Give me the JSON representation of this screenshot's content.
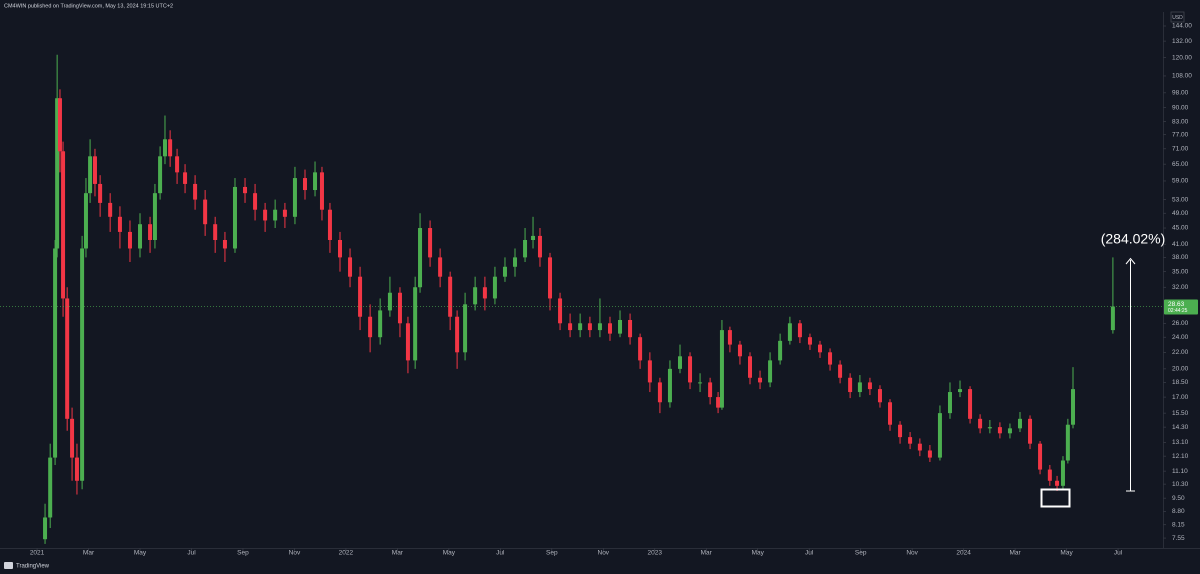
{
  "chart_data": {
    "type": "candlestick",
    "header": "CM4WIN published on TradingView.com, May 13, 2024 19:15 UTC+2",
    "currency": "USD",
    "footer": "TradingView",
    "annotation": "(284.02%)",
    "log_scale": true,
    "up_color": "#4caf50",
    "down_color": "#f23645",
    "last_price": 28.63,
    "countdown": "02:44:25",
    "xlim": [
      -1.44,
      43.63
    ],
    "ylim": [
      7.13,
      154.3
    ],
    "xticks": [
      {
        "value": 0,
        "label": "2021"
      },
      {
        "value": 2,
        "label": "Mar"
      },
      {
        "value": 4,
        "label": "May"
      },
      {
        "value": 6,
        "label": "Jul"
      },
      {
        "value": 8,
        "label": "Sep"
      },
      {
        "value": 10,
        "label": "Nov"
      },
      {
        "value": 12,
        "label": "2022"
      },
      {
        "value": 14,
        "label": "Mar"
      },
      {
        "value": 16,
        "label": "May"
      },
      {
        "value": 18,
        "label": "Jul"
      },
      {
        "value": 20,
        "label": "Sep"
      },
      {
        "value": 22,
        "label": "Nov"
      },
      {
        "value": 24,
        "label": "2023"
      },
      {
        "value": 26,
        "label": "Mar"
      },
      {
        "value": 28,
        "label": "May"
      },
      {
        "value": 30,
        "label": "Jul"
      },
      {
        "value": 32,
        "label": "Sep"
      },
      {
        "value": 34,
        "label": "Nov"
      },
      {
        "value": 36,
        "label": "2024"
      },
      {
        "value": 38,
        "label": "Mar"
      },
      {
        "value": 40,
        "label": "May"
      },
      {
        "value": 42,
        "label": "Jul"
      }
    ],
    "yticks": [
      {
        "value": 144,
        "label": "144.00"
      },
      {
        "value": 132,
        "label": "132.00"
      },
      {
        "value": 120,
        "label": "120.00"
      },
      {
        "value": 108,
        "label": "108.00"
      },
      {
        "value": 98,
        "label": "98.00"
      },
      {
        "value": 90,
        "label": "90.00"
      },
      {
        "value": 83,
        "label": "83.00"
      },
      {
        "value": 77,
        "label": "77.00"
      },
      {
        "value": 71,
        "label": "71.00"
      },
      {
        "value": 65,
        "label": "65.00"
      },
      {
        "value": 59,
        "label": "59.00"
      },
      {
        "value": 53,
        "label": "53.00"
      },
      {
        "value": 49,
        "label": "49.00"
      },
      {
        "value": 45,
        "label": "45.00"
      },
      {
        "value": 41,
        "label": "41.00"
      },
      {
        "value": 38,
        "label": "38.00"
      },
      {
        "value": 35,
        "label": "35.00"
      },
      {
        "value": 32,
        "label": "32.00"
      },
      {
        "value": 26,
        "label": "26.00"
      },
      {
        "value": 24,
        "label": "24.00"
      },
      {
        "value": 22,
        "label": "22.00"
      },
      {
        "value": 20,
        "label": "20.00"
      },
      {
        "value": 18.5,
        "label": "18.50"
      },
      {
        "value": 17,
        "label": "17.00"
      },
      {
        "value": 15.5,
        "label": "15.50"
      },
      {
        "value": 14.3,
        "label": "14.30"
      },
      {
        "value": 13.1,
        "label": "13.10"
      },
      {
        "value": 12.1,
        "label": "12.10"
      },
      {
        "value": 11.1,
        "label": "11.10"
      },
      {
        "value": 10.3,
        "label": "10.30"
      },
      {
        "value": 9.5,
        "label": "9.50"
      },
      {
        "value": 8.8,
        "label": "8.80"
      },
      {
        "value": 8.15,
        "label": "8.15"
      },
      {
        "value": 7.55,
        "label": "7.55"
      }
    ],
    "x": [
      0.31,
      0.51,
      0.7,
      0.78,
      0.89,
      1.01,
      1.17,
      1.36,
      1.55,
      1.75,
      1.9,
      2.06,
      2.25,
      2.45,
      2.84,
      3.22,
      3.61,
      4.0,
      4.39,
      4.58,
      4.78,
      4.97,
      5.17,
      5.44,
      5.75,
      6.14,
      6.53,
      6.92,
      7.3,
      7.69,
      8.08,
      8.47,
      8.86,
      9.25,
      9.63,
      10.02,
      10.41,
      10.8,
      11.07,
      11.38,
      11.77,
      12.16,
      12.55,
      12.94,
      13.33,
      13.71,
      14.1,
      14.41,
      14.69,
      14.88,
      15.27,
      15.66,
      16.05,
      16.32,
      16.63,
      17.02,
      17.4,
      17.79,
      18.18,
      18.57,
      18.96,
      19.27,
      19.54,
      19.93,
      20.32,
      20.71,
      21.1,
      21.48,
      21.87,
      22.26,
      22.65,
      23.04,
      23.43,
      23.81,
      24.2,
      24.59,
      24.98,
      25.37,
      25.76,
      26.15,
      26.46,
      26.61,
      26.92,
      27.31,
      27.7,
      28.09,
      28.48,
      28.87,
      29.25,
      29.64,
      30.03,
      30.42,
      30.81,
      31.2,
      31.59,
      31.97,
      32.36,
      32.75,
      33.14,
      33.53,
      33.92,
      34.3,
      34.69,
      35.08,
      35.47,
      35.86,
      36.25,
      36.64,
      37.02,
      37.41,
      37.8,
      38.19,
      38.58,
      38.97,
      39.35,
      39.63,
      39.86,
      40.05,
      40.25,
      41.8
    ],
    "open": [
      7.5,
      8.5,
      12,
      40,
      95,
      70,
      30,
      15,
      12,
      10.5,
      40,
      55,
      68,
      58,
      52,
      48,
      44,
      40,
      46,
      42,
      55,
      68,
      75,
      68,
      62,
      58,
      53,
      46,
      42,
      40,
      57,
      55,
      50,
      47,
      50,
      48,
      60,
      56,
      62,
      50,
      42,
      38,
      34,
      27,
      24,
      28,
      31,
      26,
      21,
      32,
      45,
      38,
      34,
      27,
      22,
      29,
      32,
      30,
      34,
      36,
      38,
      42,
      43,
      38,
      30,
      26,
      25,
      26,
      25,
      26,
      24.5,
      26.5,
      24,
      21,
      18.5,
      16.5,
      20,
      21.5,
      18.5,
      18.5,
      17,
      16,
      25,
      23,
      21.5,
      19,
      18.5,
      21,
      23.5,
      26,
      24,
      23,
      22,
      20.5,
      19,
      17.5,
      18.5,
      17.8,
      16.5,
      14.5,
      13.5,
      13,
      12.5,
      12,
      15.5,
      17.5,
      17.8,
      15,
      14.2,
      14.3,
      13.8,
      14.2,
      15,
      13,
      11.2,
      10.5,
      10.2,
      11.8,
      14.5,
      25
    ],
    "high": [
      9.2,
      13,
      42,
      122,
      100,
      74,
      32,
      16,
      13,
      43,
      60,
      75,
      71,
      61,
      55,
      51,
      47,
      49,
      48,
      58,
      72,
      86,
      79,
      71,
      65,
      61,
      56,
      48,
      44,
      60,
      60,
      58,
      52,
      53,
      52,
      64,
      63,
      66,
      64,
      52,
      44,
      40,
      36,
      29,
      30,
      34,
      32,
      27,
      34,
      49,
      47,
      40,
      35,
      28,
      31,
      34,
      34,
      36,
      38,
      40,
      45,
      48,
      45,
      39,
      31,
      27.5,
      27.5,
      27,
      30,
      27,
      28,
      27.5,
      24.5,
      22,
      19,
      21,
      23,
      22,
      19.5,
      19,
      17.5,
      26.5,
      25.5,
      23.5,
      22,
      19.8,
      22,
      24.5,
      27,
      26.5,
      24.5,
      23.5,
      22.5,
      21,
      19.5,
      19.3,
      19,
      18.2,
      16.8,
      14.8,
      13.9,
      13.4,
      12.9,
      16.2,
      18.5,
      18.7,
      18.1,
      15.4,
      14.9,
      14.7,
      14.6,
      15.6,
      15.3,
      13.2,
      11.5,
      10.8,
      12.1,
      15,
      20.2,
      38
    ],
    "low": [
      7.3,
      8,
      11.5,
      38,
      62,
      27,
      14,
      10.5,
      9.7,
      10,
      38,
      52,
      54,
      48,
      44,
      40,
      37,
      38,
      39,
      40,
      53,
      65,
      64,
      58,
      55,
      50,
      43,
      39,
      37,
      39,
      52,
      47,
      44,
      45,
      45,
      46,
      53,
      54,
      47,
      39,
      35,
      32,
      25,
      22,
      23,
      27,
      24,
      19.5,
      20,
      31,
      36,
      32,
      25,
      20,
      21,
      28,
      28,
      29,
      33,
      34,
      37,
      40,
      36,
      28,
      25,
      24,
      24,
      24,
      24,
      23.5,
      24,
      23,
      20,
      17.5,
      15.5,
      16,
      19.5,
      17.8,
      17.5,
      16.3,
      15.5,
      15.8,
      22,
      20.5,
      18.3,
      17.8,
      18,
      20.5,
      23,
      23.2,
      22.3,
      21.3,
      19.8,
      18.4,
      16.9,
      17,
      17.2,
      16,
      14,
      13,
      12.6,
      12.1,
      11.7,
      11.8,
      15,
      17,
      14.6,
      13.8,
      13.8,
      13.4,
      13.4,
      13.9,
      12.6,
      10.9,
      10.2,
      9.9,
      10,
      11.6,
      14.2,
      24.5
    ],
    "close": [
      8.5,
      12,
      40,
      95,
      70,
      30,
      15,
      12,
      10.5,
      40,
      55,
      68,
      58,
      52,
      48,
      44,
      40,
      46,
      42,
      55,
      68,
      75,
      68,
      62,
      58,
      53,
      46,
      42,
      40,
      57,
      55,
      50,
      47,
      50,
      48,
      60,
      56,
      62,
      50,
      42,
      38,
      34,
      27,
      24,
      28,
      31,
      26,
      21,
      32,
      45,
      38,
      34,
      27,
      22,
      29,
      32,
      30,
      34,
      36,
      38,
      42,
      43,
      38,
      30,
      26,
      25,
      26,
      25,
      26,
      24.5,
      26.5,
      24,
      21,
      18.5,
      16.5,
      20,
      21.5,
      18.5,
      18.5,
      17,
      16,
      25,
      23,
      21.5,
      19,
      18.5,
      21,
      23.5,
      26,
      24,
      23,
      22,
      20.5,
      19,
      17.5,
      18.5,
      17.8,
      16.5,
      14.5,
      13.5,
      13,
      12.5,
      12,
      15.5,
      17.5,
      17.8,
      15,
      14.2,
      14.3,
      13.8,
      14.2,
      15,
      13,
      11.2,
      10.5,
      10.2,
      11.8,
      14.5,
      17.8,
      28.63
    ]
  }
}
